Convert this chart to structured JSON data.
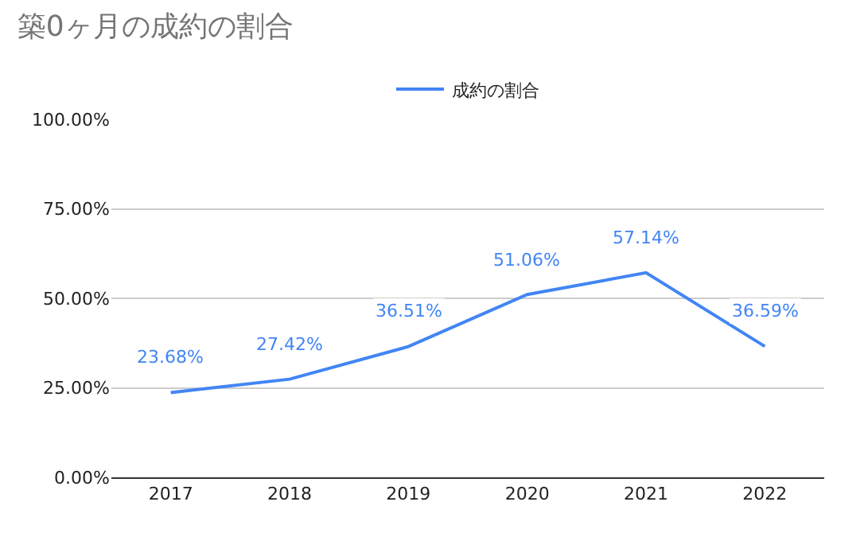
{
  "chart_data": {
    "type": "line",
    "title": "築0ヶ月の成約の割合",
    "categories": [
      "2017",
      "2018",
      "2019",
      "2020",
      "2021",
      "2022"
    ],
    "series": [
      {
        "name": "成約の割合",
        "color": "#4285f4",
        "values": [
          23.68,
          27.42,
          36.51,
          51.06,
          57.14,
          36.59
        ],
        "value_labels": [
          "23.68%",
          "27.42%",
          "36.51%",
          "51.06%",
          "57.14%",
          "36.59%"
        ]
      }
    ],
    "ylim": [
      0,
      100
    ],
    "yticks": [
      {
        "value": 0,
        "label": "0.00%"
      },
      {
        "value": 25,
        "label": "25.00%"
      },
      {
        "value": 50,
        "label": "50.00%"
      },
      {
        "value": 75,
        "label": "75.00%"
      },
      {
        "value": 100,
        "label": "100.00%"
      }
    ],
    "grid": "y",
    "legend": "top",
    "marker": "none",
    "line_style": "solid"
  }
}
